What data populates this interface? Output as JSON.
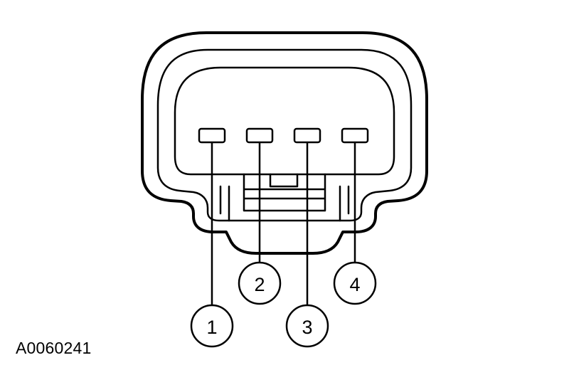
{
  "figure_id": "A0060241",
  "callouts": [
    {
      "label": "1"
    },
    {
      "label": "2"
    },
    {
      "label": "3"
    },
    {
      "label": "4"
    }
  ],
  "colors": {
    "line": "#000000",
    "background": "#ffffff"
  }
}
